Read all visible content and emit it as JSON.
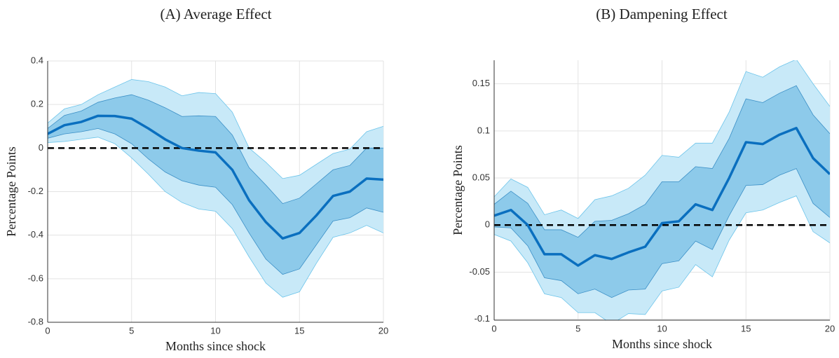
{
  "chart_data": [
    {
      "type": "line",
      "title": "(A) Average Effect",
      "xlabel": "Months since shock",
      "ylabel": "Percentage Points",
      "x": [
        0,
        1,
        2,
        3,
        4,
        5,
        6,
        7,
        8,
        9,
        10,
        11,
        12,
        13,
        14,
        15,
        16,
        17,
        18,
        19,
        20
      ],
      "xlim": [
        0,
        20
      ],
      "xticks": [
        0,
        5,
        10,
        15,
        20
      ],
      "ylim": [
        -0.8,
        0.4
      ],
      "yticks": [
        -0.8,
        -0.6,
        -0.4,
        -0.2,
        0,
        0.2,
        0.4
      ],
      "grid": true,
      "hline": 0,
      "bands": [
        {
          "color": "#c8e9f8",
          "edge": "#6cc4ea",
          "upper": [
            0.115,
            0.18,
            0.2,
            0.245,
            0.28,
            0.315,
            0.305,
            0.28,
            0.24,
            0.255,
            0.25,
            0.165,
            0.0,
            -0.065,
            -0.14,
            -0.125,
            -0.075,
            -0.025,
            -0.005,
            0.075,
            0.1
          ],
          "lower": [
            0.025,
            0.03,
            0.04,
            0.05,
            0.02,
            -0.045,
            -0.12,
            -0.2,
            -0.25,
            -0.28,
            -0.29,
            -0.37,
            -0.5,
            -0.62,
            -0.685,
            -0.66,
            -0.53,
            -0.41,
            -0.39,
            -0.355,
            -0.39
          ]
        },
        {
          "color": "#8dcaea",
          "edge": "#3b8fc6",
          "upper": [
            0.09,
            0.15,
            0.17,
            0.21,
            0.23,
            0.245,
            0.22,
            0.185,
            0.145,
            0.148,
            0.145,
            0.06,
            -0.09,
            -0.17,
            -0.255,
            -0.23,
            -0.165,
            -0.1,
            -0.08,
            0.0,
            0.0
          ],
          "lower": [
            0.045,
            0.065,
            0.075,
            0.09,
            0.065,
            0.02,
            -0.05,
            -0.11,
            -0.15,
            -0.17,
            -0.18,
            -0.26,
            -0.39,
            -0.51,
            -0.58,
            -0.555,
            -0.445,
            -0.335,
            -0.32,
            -0.275,
            -0.295
          ]
        }
      ],
      "line": {
        "color": "#0a6fbf",
        "values": [
          0.065,
          0.105,
          0.12,
          0.148,
          0.147,
          0.135,
          0.09,
          0.04,
          0.0,
          -0.012,
          -0.02,
          -0.1,
          -0.24,
          -0.34,
          -0.415,
          -0.39,
          -0.31,
          -0.22,
          -0.2,
          -0.14,
          -0.145
        ]
      }
    },
    {
      "type": "line",
      "title": "(B) Dampening Effect",
      "xlabel": "Months since shock",
      "ylabel": "Percentage Points",
      "x": [
        0,
        1,
        2,
        3,
        4,
        5,
        6,
        7,
        8,
        9,
        10,
        11,
        12,
        13,
        14,
        15,
        16,
        17,
        18,
        19,
        20
      ],
      "xlim": [
        0,
        20
      ],
      "xticks": [
        0,
        5,
        10,
        15,
        20
      ],
      "ylim": [
        -0.101,
        0.175
      ],
      "yticks": [
        -0.1,
        -0.05,
        0,
        0.05,
        0.1,
        0.15
      ],
      "grid": true,
      "hline": 0,
      "bands": [
        {
          "color": "#c8e9f8",
          "edge": "#6cc4ea",
          "upper": [
            0.03,
            0.049,
            0.04,
            0.011,
            0.016,
            0.007,
            0.027,
            0.031,
            0.039,
            0.053,
            0.074,
            0.072,
            0.087,
            0.087,
            0.12,
            0.163,
            0.157,
            0.168,
            0.176,
            0.15,
            0.126
          ],
          "lower": [
            -0.01,
            -0.017,
            -0.04,
            -0.073,
            -0.077,
            -0.093,
            -0.093,
            -0.105,
            -0.094,
            -0.095,
            -0.07,
            -0.066,
            -0.042,
            -0.055,
            -0.016,
            0.013,
            0.016,
            0.024,
            0.031,
            -0.007,
            -0.019
          ]
        },
        {
          "color": "#8dcaea",
          "edge": "#3b8fc6",
          "upper": [
            0.022,
            0.036,
            0.023,
            -0.005,
            -0.005,
            -0.013,
            0.004,
            0.005,
            0.012,
            0.022,
            0.046,
            0.046,
            0.062,
            0.06,
            0.092,
            0.134,
            0.13,
            0.14,
            0.148,
            0.117,
            0.097
          ],
          "lower": [
            -0.002,
            -0.003,
            -0.022,
            -0.056,
            -0.059,
            -0.073,
            -0.068,
            -0.077,
            -0.069,
            -0.068,
            -0.041,
            -0.038,
            -0.017,
            -0.026,
            0.01,
            0.042,
            0.043,
            0.053,
            0.06,
            0.023,
            0.008
          ]
        }
      ],
      "line": {
        "color": "#0a6fbf",
        "values": [
          0.01,
          0.016,
          0.0,
          -0.031,
          -0.031,
          -0.043,
          -0.032,
          -0.036,
          -0.029,
          -0.023,
          0.002,
          0.004,
          0.022,
          0.016,
          0.05,
          0.088,
          0.086,
          0.096,
          0.103,
          0.071,
          0.054
        ]
      }
    }
  ]
}
